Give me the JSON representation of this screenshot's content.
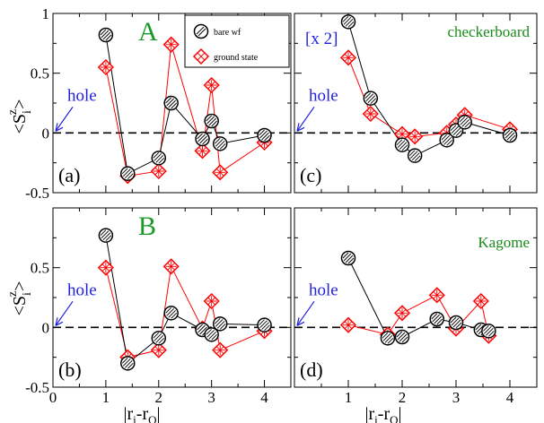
{
  "colors": {
    "bare": "#000000",
    "ground": "#ff0000",
    "letter": "#1a9a2a",
    "note_green": "#1a8a1a",
    "hole": "#1f1fdd"
  },
  "legend": {
    "bare_label": "bare wf",
    "ground_label": "ground state"
  },
  "axes": {
    "ylabel": "<S_i^z>",
    "xlabel": "|r_i-r_O|",
    "xlim": [
      0,
      4.5
    ],
    "ylim": [
      -0.5,
      1.0
    ],
    "xticks": [
      0,
      1,
      2,
      3,
      4
    ],
    "yticks": [
      -0.5,
      0,
      0.5,
      1
    ],
    "xtick_labels": [
      "0",
      "1",
      "2",
      "3",
      "4"
    ],
    "ytick_labels": [
      "-0.5",
      "0",
      "0.5",
      "1"
    ]
  },
  "chart_data": [
    {
      "type": "line",
      "panel_label": "(a)",
      "letter": "A",
      "note": "",
      "hole_label": "hole",
      "series": [
        {
          "name": "bare wf",
          "x": [
            1.0,
            1.414,
            2.0,
            2.236,
            2.828,
            3.0,
            3.162,
            4.0
          ],
          "y": [
            0.82,
            -0.34,
            -0.21,
            0.25,
            -0.05,
            0.1,
            -0.09,
            -0.02
          ]
        },
        {
          "name": "ground state",
          "x": [
            1.0,
            1.414,
            2.0,
            2.236,
            2.828,
            3.0,
            3.162,
            4.0
          ],
          "y": [
            0.55,
            -0.36,
            -0.32,
            0.74,
            -0.15,
            0.4,
            -0.33,
            -0.08
          ]
        }
      ]
    },
    {
      "type": "line",
      "panel_label": "(c)",
      "letter": "",
      "note": "checkerboard",
      "note2": "[x 2]",
      "hole_label": "hole",
      "series": [
        {
          "name": "bare wf",
          "x": [
            1.0,
            1.414,
            2.0,
            2.236,
            2.828,
            3.0,
            3.162,
            4.0
          ],
          "y": [
            0.93,
            0.29,
            -0.1,
            -0.19,
            -0.06,
            0.02,
            0.09,
            -0.02
          ]
        },
        {
          "name": "ground state",
          "x": [
            1.0,
            1.414,
            2.0,
            2.236,
            2.828,
            3.0,
            3.162,
            4.0
          ],
          "y": [
            0.63,
            0.16,
            -0.01,
            -0.03,
            0.0,
            0.07,
            0.15,
            0.03
          ]
        }
      ]
    },
    {
      "type": "line",
      "panel_label": "(b)",
      "letter": "B",
      "note": "",
      "hole_label": "hole",
      "series": [
        {
          "name": "bare wf",
          "x": [
            1.0,
            1.414,
            2.0,
            2.236,
            2.828,
            3.0,
            3.162,
            4.0
          ],
          "y": [
            0.77,
            -0.3,
            -0.09,
            0.12,
            -0.02,
            -0.06,
            0.03,
            0.02
          ]
        },
        {
          "name": "ground state",
          "x": [
            1.0,
            1.414,
            2.0,
            2.236,
            2.828,
            3.0,
            3.162,
            4.0
          ],
          "y": [
            0.5,
            -0.25,
            -0.19,
            0.51,
            -0.01,
            0.22,
            -0.19,
            -0.03
          ]
        }
      ]
    },
    {
      "type": "line",
      "panel_label": "(d)",
      "letter": "",
      "note": "Kagome",
      "hole_label": "hole",
      "series": [
        {
          "name": "bare wf",
          "x": [
            1.0,
            1.732,
            2.0,
            2.646,
            3.0,
            3.464,
            3.606
          ],
          "y": [
            0.58,
            -0.09,
            -0.08,
            0.07,
            0.04,
            -0.02,
            -0.03
          ]
        },
        {
          "name": "ground state",
          "x": [
            1.0,
            1.732,
            2.0,
            2.646,
            3.0,
            3.464,
            3.606
          ],
          "y": [
            0.02,
            -0.06,
            0.12,
            0.27,
            -0.01,
            0.22,
            -0.07
          ]
        }
      ]
    }
  ]
}
